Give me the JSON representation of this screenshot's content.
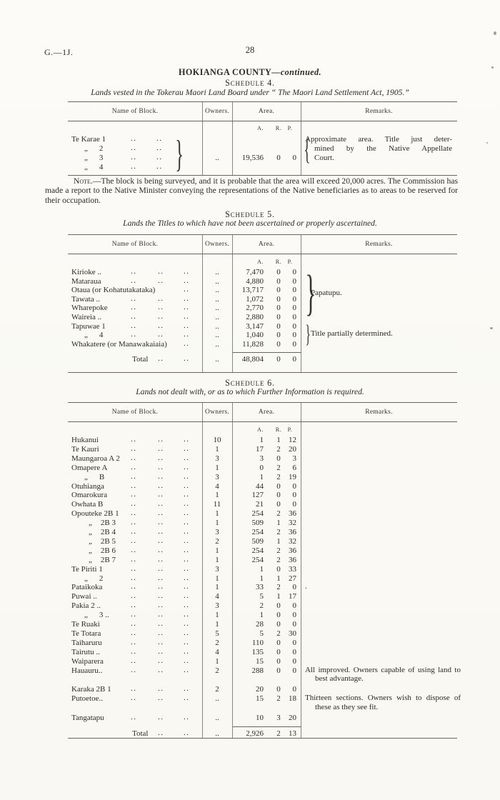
{
  "page": {
    "doc_ref": "G.—1J.",
    "page_number": "28",
    "title_main": "HOKIANGA COUNTY",
    "title_continued": "—continued.",
    "ink_color": "#2d2a24",
    "paper_color": "#fbfaf6"
  },
  "columns": {
    "name": "Name of Block.",
    "owners": "Owners.",
    "area": "Area.",
    "remarks": "Remarks."
  },
  "area_units": [
    "A.",
    "R.",
    "P."
  ],
  "schedule4": {
    "heading": "Schedule 4.",
    "subtitle": "Lands vested in the Tokerau Maori Land Board under “ The Maori Land Settlement Act, 1905.”",
    "block_names": [
      "Te Karae 1",
      "„ 2",
      "„ 3",
      "„ 4"
    ],
    "owners": "..",
    "area": {
      "a": "19,536",
      "r": "0",
      "p": "0"
    },
    "remark_lines": [
      "Approximate area. Title just deter-",
      "mined by the Native Appellate",
      "Court."
    ],
    "note_label": "Note.",
    "note_text": "—The block is being surveyed, and it is probable that the area will exceed 20,000 acres. The Commission has made a report to the Native Minister conveying the representations of the Native beneficiaries as to areas to be reserved for their occupation."
  },
  "schedule5": {
    "heading": "Schedule 5.",
    "subtitle": "Lands the Titles to which have not been ascertained or properly ascertained.",
    "rows": [
      {
        "name": "Kirioke ..",
        "owners": "..",
        "a": "7,470",
        "r": "0",
        "p": "0"
      },
      {
        "name": "Mataraua",
        "owners": "..",
        "a": "4,880",
        "r": "0",
        "p": "0"
      },
      {
        "name": "Otaua (or Kohatutakataka)",
        "owners": "..",
        "a": "13,717",
        "r": "0",
        "p": "0"
      },
      {
        "name": "Tawata ..",
        "owners": "..",
        "a": "1,072",
        "r": "0",
        "p": "0"
      },
      {
        "name": "Wharepoke",
        "owners": "..",
        "a": "2,770",
        "r": "0",
        "p": "0"
      },
      {
        "name": "Waireia ..",
        "owners": "..",
        "a": "2,880",
        "r": "0",
        "p": "0"
      },
      {
        "name": "Tapuwae 1",
        "owners": "..",
        "a": "3,147",
        "r": "0",
        "p": "0"
      },
      {
        "name": "„ 4",
        "owners": "..",
        "a": "1,040",
        "r": "0",
        "p": "0"
      },
      {
        "name": "Whakatere (or Manawakaiaia)",
        "owners": "..",
        "a": "11,828",
        "r": "0",
        "p": "0"
      }
    ],
    "braces": [
      {
        "label": "Papatupu.",
        "from_row": 0,
        "to_row": 5
      },
      {
        "label": "Title partially determined.",
        "from_row": 6,
        "to_row": 8
      }
    ],
    "total": {
      "label": "Total",
      "owners": "..",
      "a": "48,804",
      "r": "0",
      "p": "0"
    }
  },
  "schedule6": {
    "heading": "Schedule 6.",
    "subtitle": "Lands not dealt with, or as to which Further Information is required.",
    "rows": [
      {
        "name": "Hukanui",
        "owners": "10",
        "a": "1",
        "r": "1",
        "p": "12"
      },
      {
        "name": "Te Kauri",
        "owners": "1",
        "a": "17",
        "r": "2",
        "p": "20"
      },
      {
        "name": "Maungaroa A 2",
        "owners": "3",
        "a": "3",
        "r": "0",
        "p": "3"
      },
      {
        "name": "Omapere A",
        "owners": "1",
        "a": "0",
        "r": "2",
        "p": "6"
      },
      {
        "name": "„ B",
        "owners": "3",
        "a": "1",
        "r": "2",
        "p": "19"
      },
      {
        "name": "Otuhianga",
        "owners": "4",
        "a": "44",
        "r": "0",
        "p": "0"
      },
      {
        "name": "Omarokura",
        "owners": "1",
        "a": "127",
        "r": "0",
        "p": "0"
      },
      {
        "name": "Owhata B",
        "owners": "11",
        "a": "21",
        "r": "0",
        "p": "0"
      },
      {
        "name": "Opouteke 2B 1",
        "owners": "1",
        "a": "254",
        "r": "2",
        "p": "36"
      },
      {
        "name": "„ 2B 3",
        "owners": "1",
        "a": "509",
        "r": "1",
        "p": "32"
      },
      {
        "name": "„ 2B 4",
        "owners": "3",
        "a": "254",
        "r": "2",
        "p": "36"
      },
      {
        "name": "„ 2B 5",
        "owners": "2",
        "a": "509",
        "r": "1",
        "p": "32"
      },
      {
        "name": "„ 2B 6",
        "owners": "1",
        "a": "254",
        "r": "2",
        "p": "36"
      },
      {
        "name": "„ 2B 7",
        "owners": "1",
        "a": "254",
        "r": "2",
        "p": "36"
      },
      {
        "name": "Te Piriti 1",
        "owners": "3",
        "a": "1",
        "r": "0",
        "p": "33"
      },
      {
        "name": "„ 2",
        "owners": "1",
        "a": "1",
        "r": "1",
        "p": "27"
      },
      {
        "name": "Pataikoka",
        "owners": "1",
        "a": "33",
        "r": "2",
        "p": "0",
        "remark": "."
      },
      {
        "name": "Puwai ..",
        "owners": "4",
        "a": "5",
        "r": "1",
        "p": "17"
      },
      {
        "name": "Pakia 2 ..",
        "owners": "3",
        "a": "2",
        "r": "0",
        "p": "0"
      },
      {
        "name": "„ 3 ..",
        "owners": "1",
        "a": "1",
        "r": "0",
        "p": "0"
      },
      {
        "name": "Te Ruaki",
        "owners": "1",
        "a": "28",
        "r": "0",
        "p": "0"
      },
      {
        "name": "Te Totara",
        "owners": "5",
        "a": "5",
        "r": "2",
        "p": "30"
      },
      {
        "name": "Taiharuru",
        "owners": "2",
        "a": "110",
        "r": "0",
        "p": "0"
      },
      {
        "name": "Tairutu ..",
        "owners": "4",
        "a": "135",
        "r": "0",
        "p": "0"
      },
      {
        "name": "Waiparera",
        "owners": "1",
        "a": "15",
        "r": "0",
        "p": "0"
      },
      {
        "name": "Hauauru..",
        "owners": "2",
        "a": "288",
        "r": "0",
        "p": "0",
        "remark": "All improved. Owners capable of using land to best advantage."
      },
      {
        "name": "Karaka 2B 1",
        "owners": "2",
        "a": "20",
        "r": "0",
        "p": "0",
        "gap": true
      },
      {
        "name": "Putoetoe..",
        "owners": "..",
        "a": "15",
        "r": "2",
        "p": "18",
        "remark": "Thirteen sections. Owners wish to dispose of these as they see fit."
      },
      {
        "name": "Tangatapu",
        "owners": "..",
        "a": "10",
        "r": "3",
        "p": "20",
        "gap": true
      }
    ],
    "total": {
      "label": "Total",
      "owners": "..",
      "a": "2,926",
      "r": "2",
      "p": "13"
    }
  }
}
